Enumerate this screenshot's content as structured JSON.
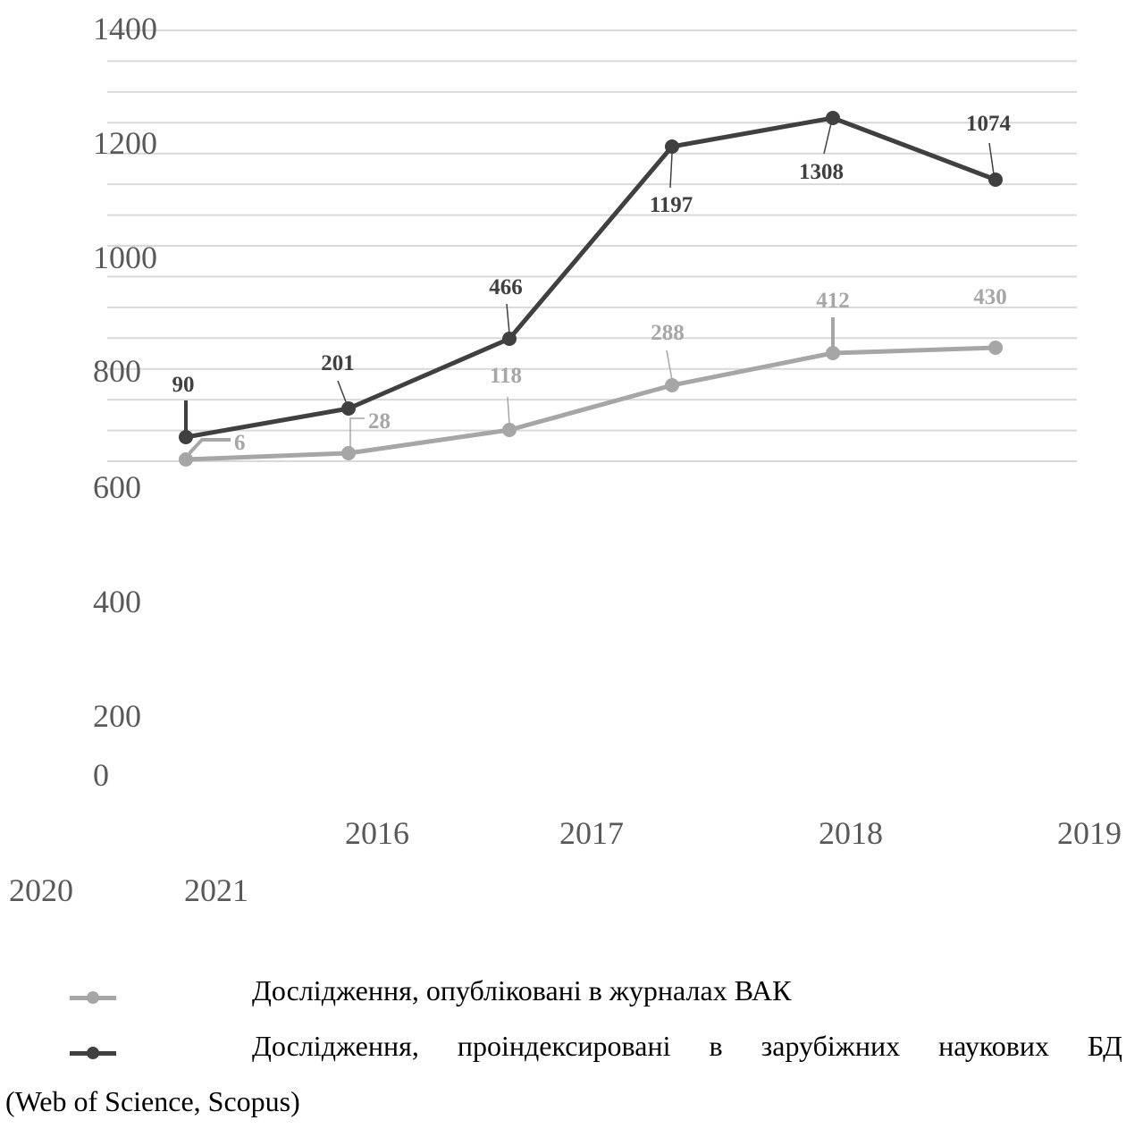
{
  "chart_data": {
    "type": "line",
    "y_ticks": [
      "1400",
      "1200",
      "1000",
      "800",
      "600",
      "400",
      "200",
      "0"
    ],
    "x_tick_labels": [
      "2016",
      "2017",
      "2018",
      "2019",
      "2020",
      "2021"
    ],
    "categories": [
      "2016",
      "2017",
      "2018",
      "2019",
      "2020",
      "2021"
    ],
    "ylim": [
      0,
      1400
    ],
    "grid": true,
    "legend_position": "bottom",
    "series": [
      {
        "name": "Дослідження, опубліковані в журналах ВАК",
        "values": [
          6,
          28,
          118,
          288,
          412,
          430
        ],
        "labels": [
          "6",
          "28",
          "118",
          "288",
          "412",
          "430"
        ],
        "color": "#a6a6a6"
      },
      {
        "name": "Дослідження, проіндексировані в зарубіжних наукових БД (Web of Science, Scopus)",
        "values": [
          90,
          201,
          466,
          1197,
          1308,
          1074
        ],
        "labels": [
          "90",
          "201",
          "466",
          "1197",
          "1308",
          "1074"
        ],
        "color": "#404040"
      }
    ]
  },
  "legend": {
    "item1": "Дослідження, опубліковані в журналах ВАК",
    "item2_line1": "Дослідження, проіндексировані в зарубіжних наукових БД",
    "item2_line2": "(Web of Science, Scopus)"
  }
}
